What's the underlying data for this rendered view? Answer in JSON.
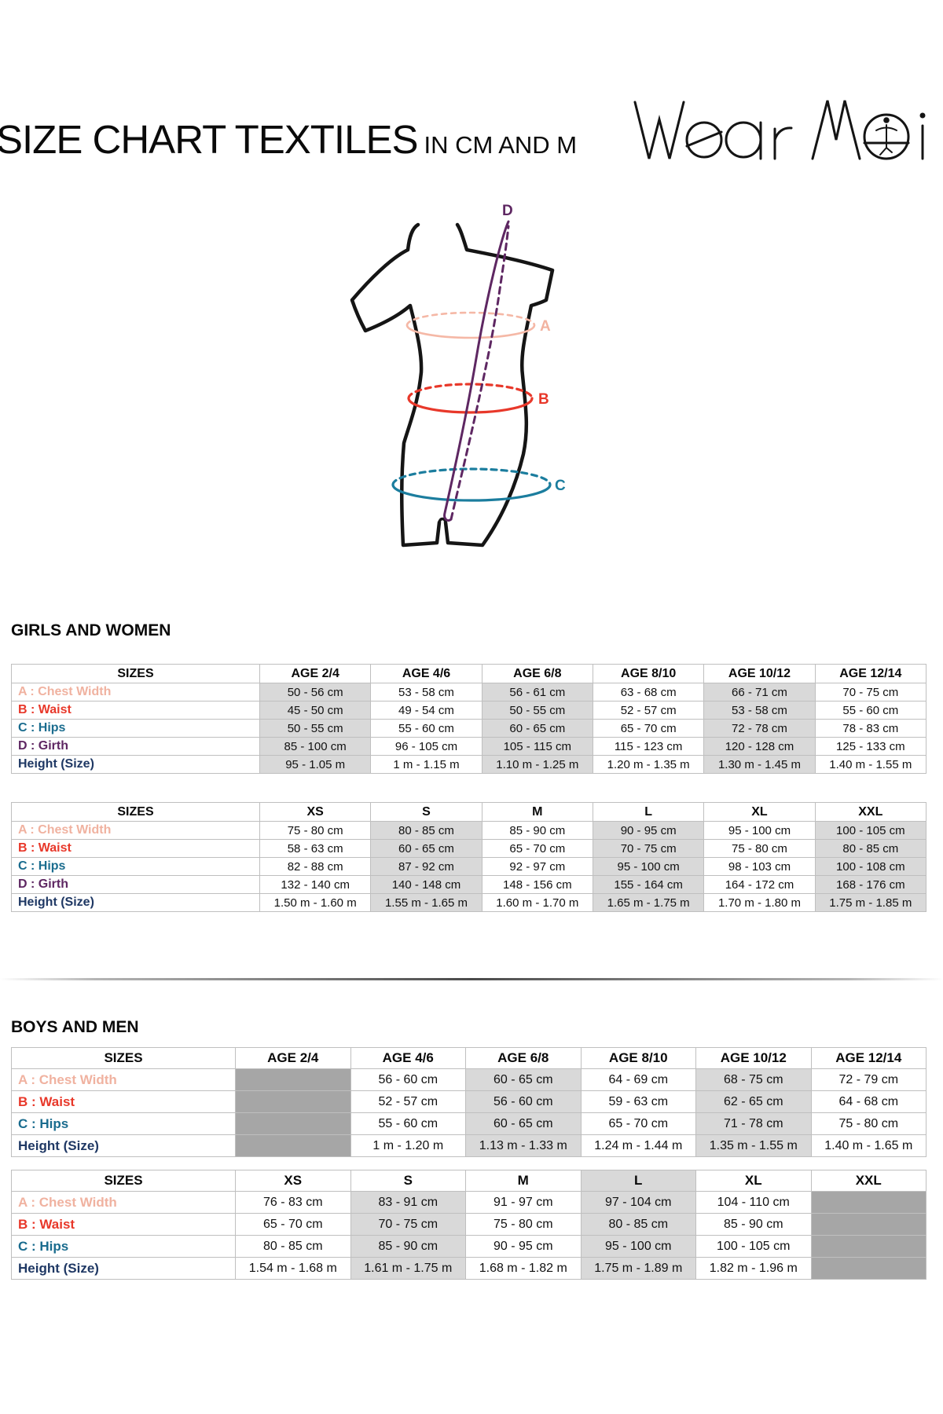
{
  "page": {
    "title": "SIZE CHART TEXTILES",
    "title_suffix": "IN CM AND M",
    "brand": "Wear Moi"
  },
  "diagram": {
    "labels": {
      "A": {
        "letter": "A",
        "color": "#f2b3a0"
      },
      "B": {
        "letter": "B",
        "color": "#e8382a"
      },
      "C": {
        "letter": "C",
        "color": "#1b7d9e"
      },
      "D": {
        "letter": "D",
        "color": "#5e2762"
      }
    }
  },
  "label_colors": {
    "A": "#f0b2a0",
    "B": "#e8382a",
    "C": "#1a6c8e",
    "D": "#5e2762",
    "H": "#1f3864"
  },
  "table_style": {
    "light_shade": "#d9d9d9",
    "dark_shade": "#a6a6a6",
    "border": "#bfbfbf"
  },
  "sections": [
    {
      "heading": "GIRLS AND WOMEN",
      "tables": [
        {
          "headers": [
            "SIZES",
            "AGE 2/4",
            "AGE 4/6",
            "AGE 6/8",
            "AGE 8/10",
            "AGE 10/12",
            "AGE 12/14"
          ],
          "light_cols": [
            0,
            2,
            4
          ],
          "header_light_cols": [],
          "block_col": null,
          "label_col_width": 316,
          "rows": [
            {
              "key": "A",
              "label": "A : Chest Width",
              "cells": [
                "50 - 56 cm",
                "53 - 58 cm",
                "56 - 61 cm",
                "63 - 68 cm",
                "66 - 71 cm",
                "70 - 75 cm"
              ]
            },
            {
              "key": "B",
              "label": "B : Waist",
              "cells": [
                "45 - 50 cm",
                "49 - 54 cm",
                "50 - 55 cm",
                "52 - 57 cm",
                "53 - 58 cm",
                "55 - 60 cm"
              ]
            },
            {
              "key": "C",
              "label": "C : Hips",
              "cells": [
                "50 - 55 cm",
                "55 - 60 cm",
                "60 - 65 cm",
                "65 - 70 cm",
                "72 - 78 cm",
                "78 - 83 cm"
              ]
            },
            {
              "key": "D",
              "label": "D : Girth",
              "cells": [
                "85 - 100 cm",
                "96 - 105 cm",
                "105 - 115 cm",
                "115 - 123 cm",
                "120 - 128 cm",
                "125 - 133 cm"
              ]
            },
            {
              "key": "H",
              "label": "Height (Size)",
              "cells": [
                "95 - 1.05 m",
                "1 m - 1.15 m",
                "1.10 m - 1.25 m",
                "1.20 m - 1.35 m",
                "1.30 m - 1.45 m",
                "1.40 m - 1.55 m"
              ]
            }
          ]
        },
        {
          "headers": [
            "SIZES",
            "XS",
            "S",
            "M",
            "L",
            "XL",
            "XXL"
          ],
          "light_cols": [
            1,
            3,
            5
          ],
          "header_light_cols": [],
          "block_col": null,
          "label_col_width": 316,
          "rows": [
            {
              "key": "A",
              "label": "A : Chest Width",
              "cells": [
                "75 - 80 cm",
                "80 - 85 cm",
                "85 - 90 cm",
                "90 - 95 cm",
                "95 - 100 cm",
                "100 - 105 cm"
              ]
            },
            {
              "key": "B",
              "label": "B : Waist",
              "cells": [
                "58 - 63 cm",
                "60 - 65 cm",
                "65 - 70 cm",
                "70 - 75 cm",
                "75 - 80 cm",
                "80 - 85 cm"
              ]
            },
            {
              "key": "C",
              "label": "C : Hips",
              "cells": [
                "82 - 88 cm",
                "87 - 92 cm",
                "92 - 97 cm",
                "95 - 100 cm",
                "98 - 103 cm",
                "100 - 108 cm"
              ]
            },
            {
              "key": "D",
              "label": "D : Girth",
              "cells": [
                "132 - 140 cm",
                "140 - 148 cm",
                "148 - 156 cm",
                "155 - 164 cm",
                "164 - 172 cm",
                "168 - 176 cm"
              ]
            },
            {
              "key": "H",
              "label": "Height (Size)",
              "cells": [
                "1.50 m - 1.60 m",
                "1.55 m - 1.65 m",
                "1.60 m - 1.70 m",
                "1.65 m - 1.75 m",
                "1.70 m - 1.80 m",
                "1.75 m - 1.85 m"
              ]
            }
          ]
        }
      ]
    },
    {
      "heading": "BOYS AND MEN",
      "tables": [
        {
          "headers": [
            "SIZES",
            "AGE 2/4",
            "AGE 4/6",
            "AGE 6/8",
            "AGE 8/10",
            "AGE 10/12",
            "AGE 12/14"
          ],
          "light_cols": [
            2,
            4
          ],
          "header_light_cols": [],
          "block_col": 0,
          "label_col_width": 285,
          "rows": [
            {
              "key": "A",
              "label": "A : Chest Width",
              "cells": [
                "",
                "56 - 60 cm",
                "60 - 65 cm",
                "64 - 69 cm",
                "68 - 75 cm",
                "72 - 79 cm"
              ]
            },
            {
              "key": "B",
              "label": "B : Waist",
              "cells": [
                "",
                "52 - 57 cm",
                "56 - 60 cm",
                "59 - 63 cm",
                "62 - 65 cm",
                "64 - 68 cm"
              ]
            },
            {
              "key": "C",
              "label": "C : Hips",
              "cells": [
                "",
                "55 - 60 cm",
                "60 - 65 cm",
                "65 - 70 cm",
                "71 - 78 cm",
                "75 - 80 cm"
              ]
            },
            {
              "key": "H",
              "label": "Height (Size)",
              "cells": [
                "",
                "1 m - 1.20 m",
                "1.13 m - 1.33 m",
                "1.24 m - 1.44 m",
                "1.35 m - 1.55 m",
                "1.40 m - 1.65 m"
              ]
            }
          ]
        },
        {
          "headers": [
            "SIZES",
            "XS",
            "S",
            "M",
            "L",
            "XL",
            "XXL"
          ],
          "light_cols": [
            1,
            3
          ],
          "header_light_cols": [
            3
          ],
          "block_col": 5,
          "label_col_width": 285,
          "rows": [
            {
              "key": "A",
              "label": "A : Chest Width",
              "cells": [
                "76 - 83 cm",
                "83 - 91 cm",
                "91 - 97 cm",
                "97 - 104 cm",
                "104 - 110 cm",
                ""
              ]
            },
            {
              "key": "B",
              "label": "B : Waist",
              "cells": [
                "65 - 70 cm",
                "70 - 75 cm",
                "75 - 80 cm",
                "80 - 85 cm",
                "85 - 90 cm",
                ""
              ]
            },
            {
              "key": "C",
              "label": "C : Hips",
              "cells": [
                "80 - 85 cm",
                "85 - 90 cm",
                "90 - 95 cm",
                "95 - 100 cm",
                "100 - 105 cm",
                ""
              ]
            },
            {
              "key": "H",
              "label": "Height (Size)",
              "cells": [
                "1.54 m - 1.68 m",
                "1.61 m - 1.75 m",
                "1.68 m - 1.82 m",
                "1.75 m - 1.89 m",
                "1.82 m - 1.96 m",
                ""
              ]
            }
          ]
        }
      ]
    }
  ]
}
